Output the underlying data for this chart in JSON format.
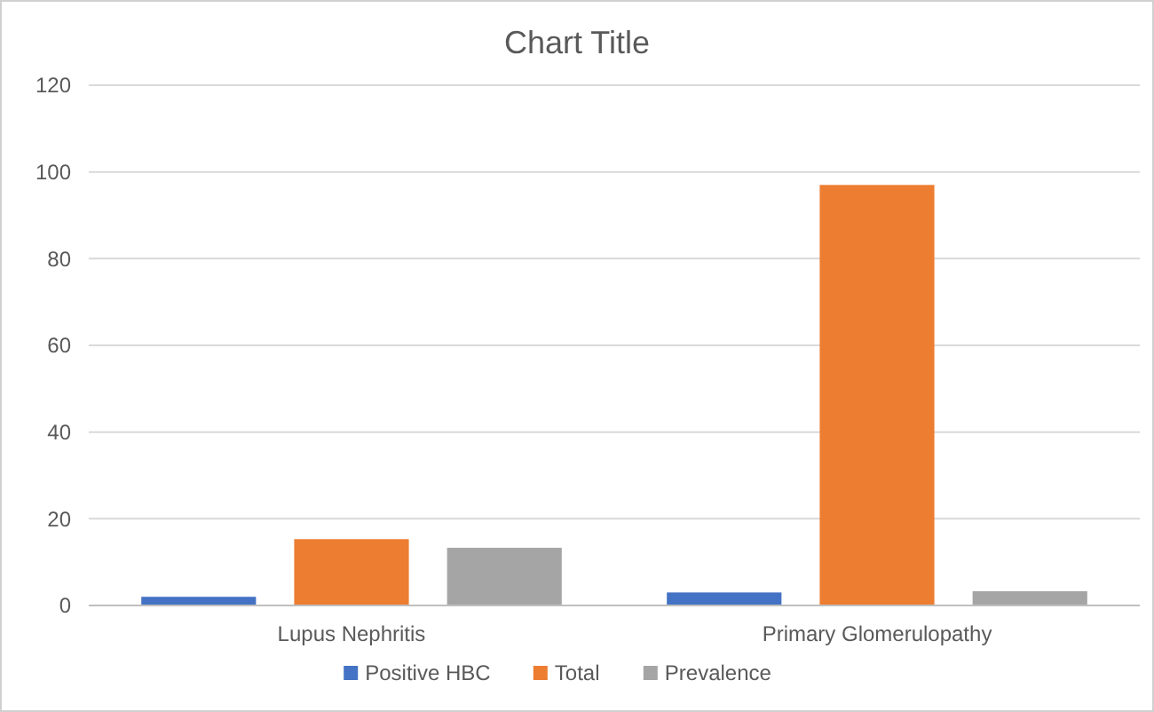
{
  "chart_data": {
    "type": "bar",
    "title": "Chart Title",
    "categories": [
      "Lupus Nephritis",
      "Primary Glomerulopathy"
    ],
    "series": [
      {
        "name": "Positive HBC",
        "color": "#4472c4",
        "values": [
          2,
          3
        ]
      },
      {
        "name": "Total",
        "color": "#ed7d31",
        "values": [
          15.3,
          97
        ]
      },
      {
        "name": "Prevalence",
        "color": "#a5a5a5",
        "values": [
          13.3,
          3.3
        ]
      }
    ],
    "ylim": [
      0,
      120
    ],
    "yticks": [
      0,
      20,
      40,
      60,
      80,
      100,
      120
    ],
    "grid": "y",
    "legend": "bottom"
  }
}
